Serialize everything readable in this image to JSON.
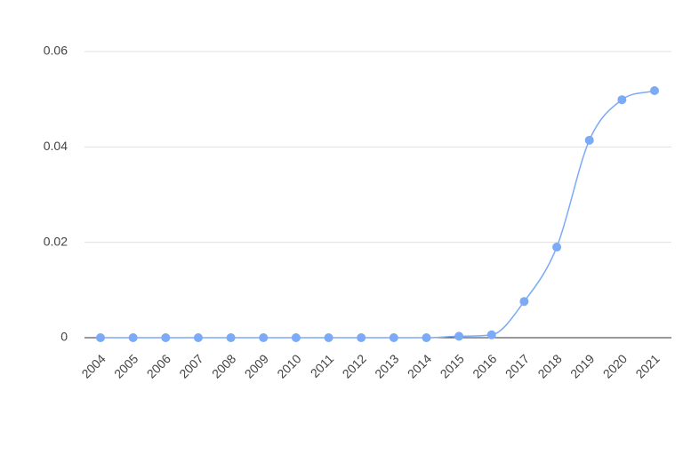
{
  "chart_data": {
    "type": "line",
    "categories": [
      "2004",
      "2005",
      "2006",
      "2007",
      "2008",
      "2009",
      "2010",
      "2011",
      "2012",
      "2013",
      "2014",
      "2015",
      "2016",
      "2017",
      "2018",
      "2019",
      "2020",
      "2021"
    ],
    "values": [
      0,
      0,
      0,
      0,
      0,
      0,
      0,
      0,
      0,
      0,
      0,
      0.0003,
      0.0006,
      0.0076,
      0.019,
      0.0414,
      0.0499,
      0.0518
    ],
    "color": "#7baaf7",
    "ylim": [
      0,
      0.06
    ],
    "yticks": [
      0,
      0.02,
      0.04,
      0.06
    ],
    "grid": true
  }
}
